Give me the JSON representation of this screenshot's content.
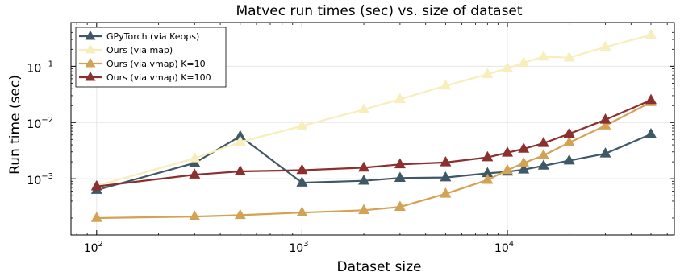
{
  "chart_data": {
    "type": "line",
    "title": "Matvec run times (sec) vs. size of dataset",
    "xlabel": "Dataset size",
    "ylabel": "Run time (sec)",
    "xscale": "log",
    "yscale": "log",
    "xlim": [
      75,
      65000
    ],
    "ylim": [
      0.0001,
      0.6
    ],
    "grid": true,
    "legend_position": "top-left",
    "x_ticks": [
      {
        "base": "10",
        "exp": "2",
        "value": 100
      },
      {
        "base": "10",
        "exp": "3",
        "value": 1000
      },
      {
        "base": "10",
        "exp": "4",
        "value": 10000
      }
    ],
    "y_ticks": [
      {
        "base": "10",
        "exp": "−3",
        "value": 0.001
      },
      {
        "base": "10",
        "exp": "−2",
        "value": 0.01
      },
      {
        "base": "10",
        "exp": "−1",
        "value": 0.1
      }
    ],
    "series": [
      {
        "name": "GPyTorch (via Keops)",
        "color": "#3f5866",
        "marker": "triangle",
        "x": [
          100,
          300,
          500,
          1000,
          2000,
          3000,
          5000,
          8000,
          10000,
          12000,
          15000,
          20000,
          30000,
          50000
        ],
        "y": [
          0.00063,
          0.0019,
          0.0057,
          0.00085,
          0.00092,
          0.00103,
          0.00105,
          0.00125,
          0.00133,
          0.00145,
          0.0017,
          0.0021,
          0.0028,
          0.0062
        ]
      },
      {
        "name": "Ours (via map)",
        "color": "#f8eebb",
        "marker": "triangle",
        "x": [
          100,
          300,
          500,
          1000,
          2000,
          3000,
          5000,
          8000,
          10000,
          12000,
          15000,
          20000,
          30000,
          50000
        ],
        "y": [
          0.00075,
          0.0023,
          0.0045,
          0.0087,
          0.017,
          0.026,
          0.045,
          0.072,
          0.092,
          0.115,
          0.148,
          0.142,
          0.22,
          0.36
        ]
      },
      {
        "name": "Ours (via vmap) K=10",
        "color": "#d4a254",
        "marker": "triangle",
        "x": [
          100,
          300,
          500,
          1000,
          2000,
          3000,
          5000,
          8000,
          10000,
          12000,
          15000,
          20000,
          30000,
          50000
        ],
        "y": [
          0.0002,
          0.000213,
          0.000225,
          0.00025,
          0.000275,
          0.000315,
          0.00054,
          0.00095,
          0.00142,
          0.0019,
          0.0026,
          0.0044,
          0.0088,
          0.023
        ]
      },
      {
        "name": "Ours (via vmap) K=100",
        "color": "#8b2f2f",
        "marker": "triangle",
        "x": [
          100,
          300,
          500,
          1000,
          2000,
          3000,
          5000,
          8000,
          10000,
          12000,
          15000,
          20000,
          30000,
          50000
        ],
        "y": [
          0.00073,
          0.00118,
          0.00135,
          0.00142,
          0.00157,
          0.0018,
          0.00195,
          0.0024,
          0.0029,
          0.0034,
          0.0043,
          0.0063,
          0.0112,
          0.025
        ]
      }
    ]
  }
}
